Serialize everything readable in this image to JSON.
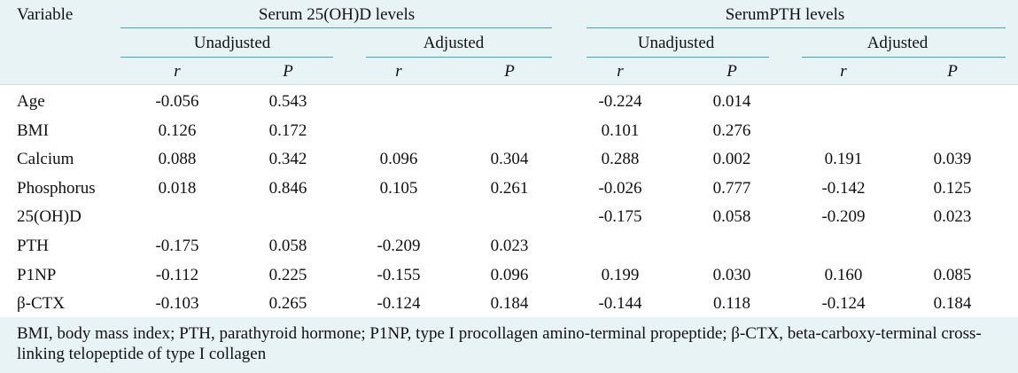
{
  "header": {
    "variable": "Variable",
    "groups": [
      "Serum 25(OH)D levels",
      "SerumPTH levels"
    ],
    "subgroups": [
      "Unadjusted",
      "Adjusted",
      "Unadjusted",
      "Adjusted"
    ],
    "stats": [
      "r",
      "P",
      "r",
      "P",
      "r",
      "P",
      "r",
      "P"
    ]
  },
  "rows": [
    {
      "label": "Age",
      "cells": [
        "-0.056",
        "0.543",
        "",
        "",
        "-0.224",
        "0.014",
        "",
        ""
      ]
    },
    {
      "label": "BMI",
      "cells": [
        "0.126",
        "0.172",
        "",
        "",
        "0.101",
        "0.276",
        "",
        ""
      ]
    },
    {
      "label": "Calcium",
      "cells": [
        "0.088",
        "0.342",
        "0.096",
        "0.304",
        "0.288",
        "0.002",
        "0.191",
        "0.039"
      ]
    },
    {
      "label": "Phosphorus",
      "cells": [
        "0.018",
        "0.846",
        "0.105",
        "0.261",
        "-0.026",
        "0.777",
        "-0.142",
        "0.125"
      ]
    },
    {
      "label": "25(OH)D",
      "cells": [
        "",
        "",
        "",
        "",
        "-0.175",
        "0.058",
        "-0.209",
        "0.023"
      ]
    },
    {
      "label": "PTH",
      "cells": [
        "-0.175",
        "0.058",
        "-0.209",
        "0.023",
        "",
        "",
        "",
        ""
      ]
    },
    {
      "label": "P1NP",
      "cells": [
        "-0.112",
        "0.225",
        "-0.155",
        "0.096",
        "0.199",
        "0.030",
        "0.160",
        "0.085"
      ]
    },
    {
      "label": "β-CTX",
      "cells": [
        "-0.103",
        "0.265",
        "-0.124",
        "0.184",
        "-0.144",
        "0.118",
        "-0.124",
        "0.184"
      ]
    }
  ],
  "footnote": "BMI, body mass index; PTH, parathyroid hormone; P1NP, type I procollagen amino-terminal propeptide; β-CTX, beta-carboxy-terminal cross-linking telopeptide of type I collagen"
}
